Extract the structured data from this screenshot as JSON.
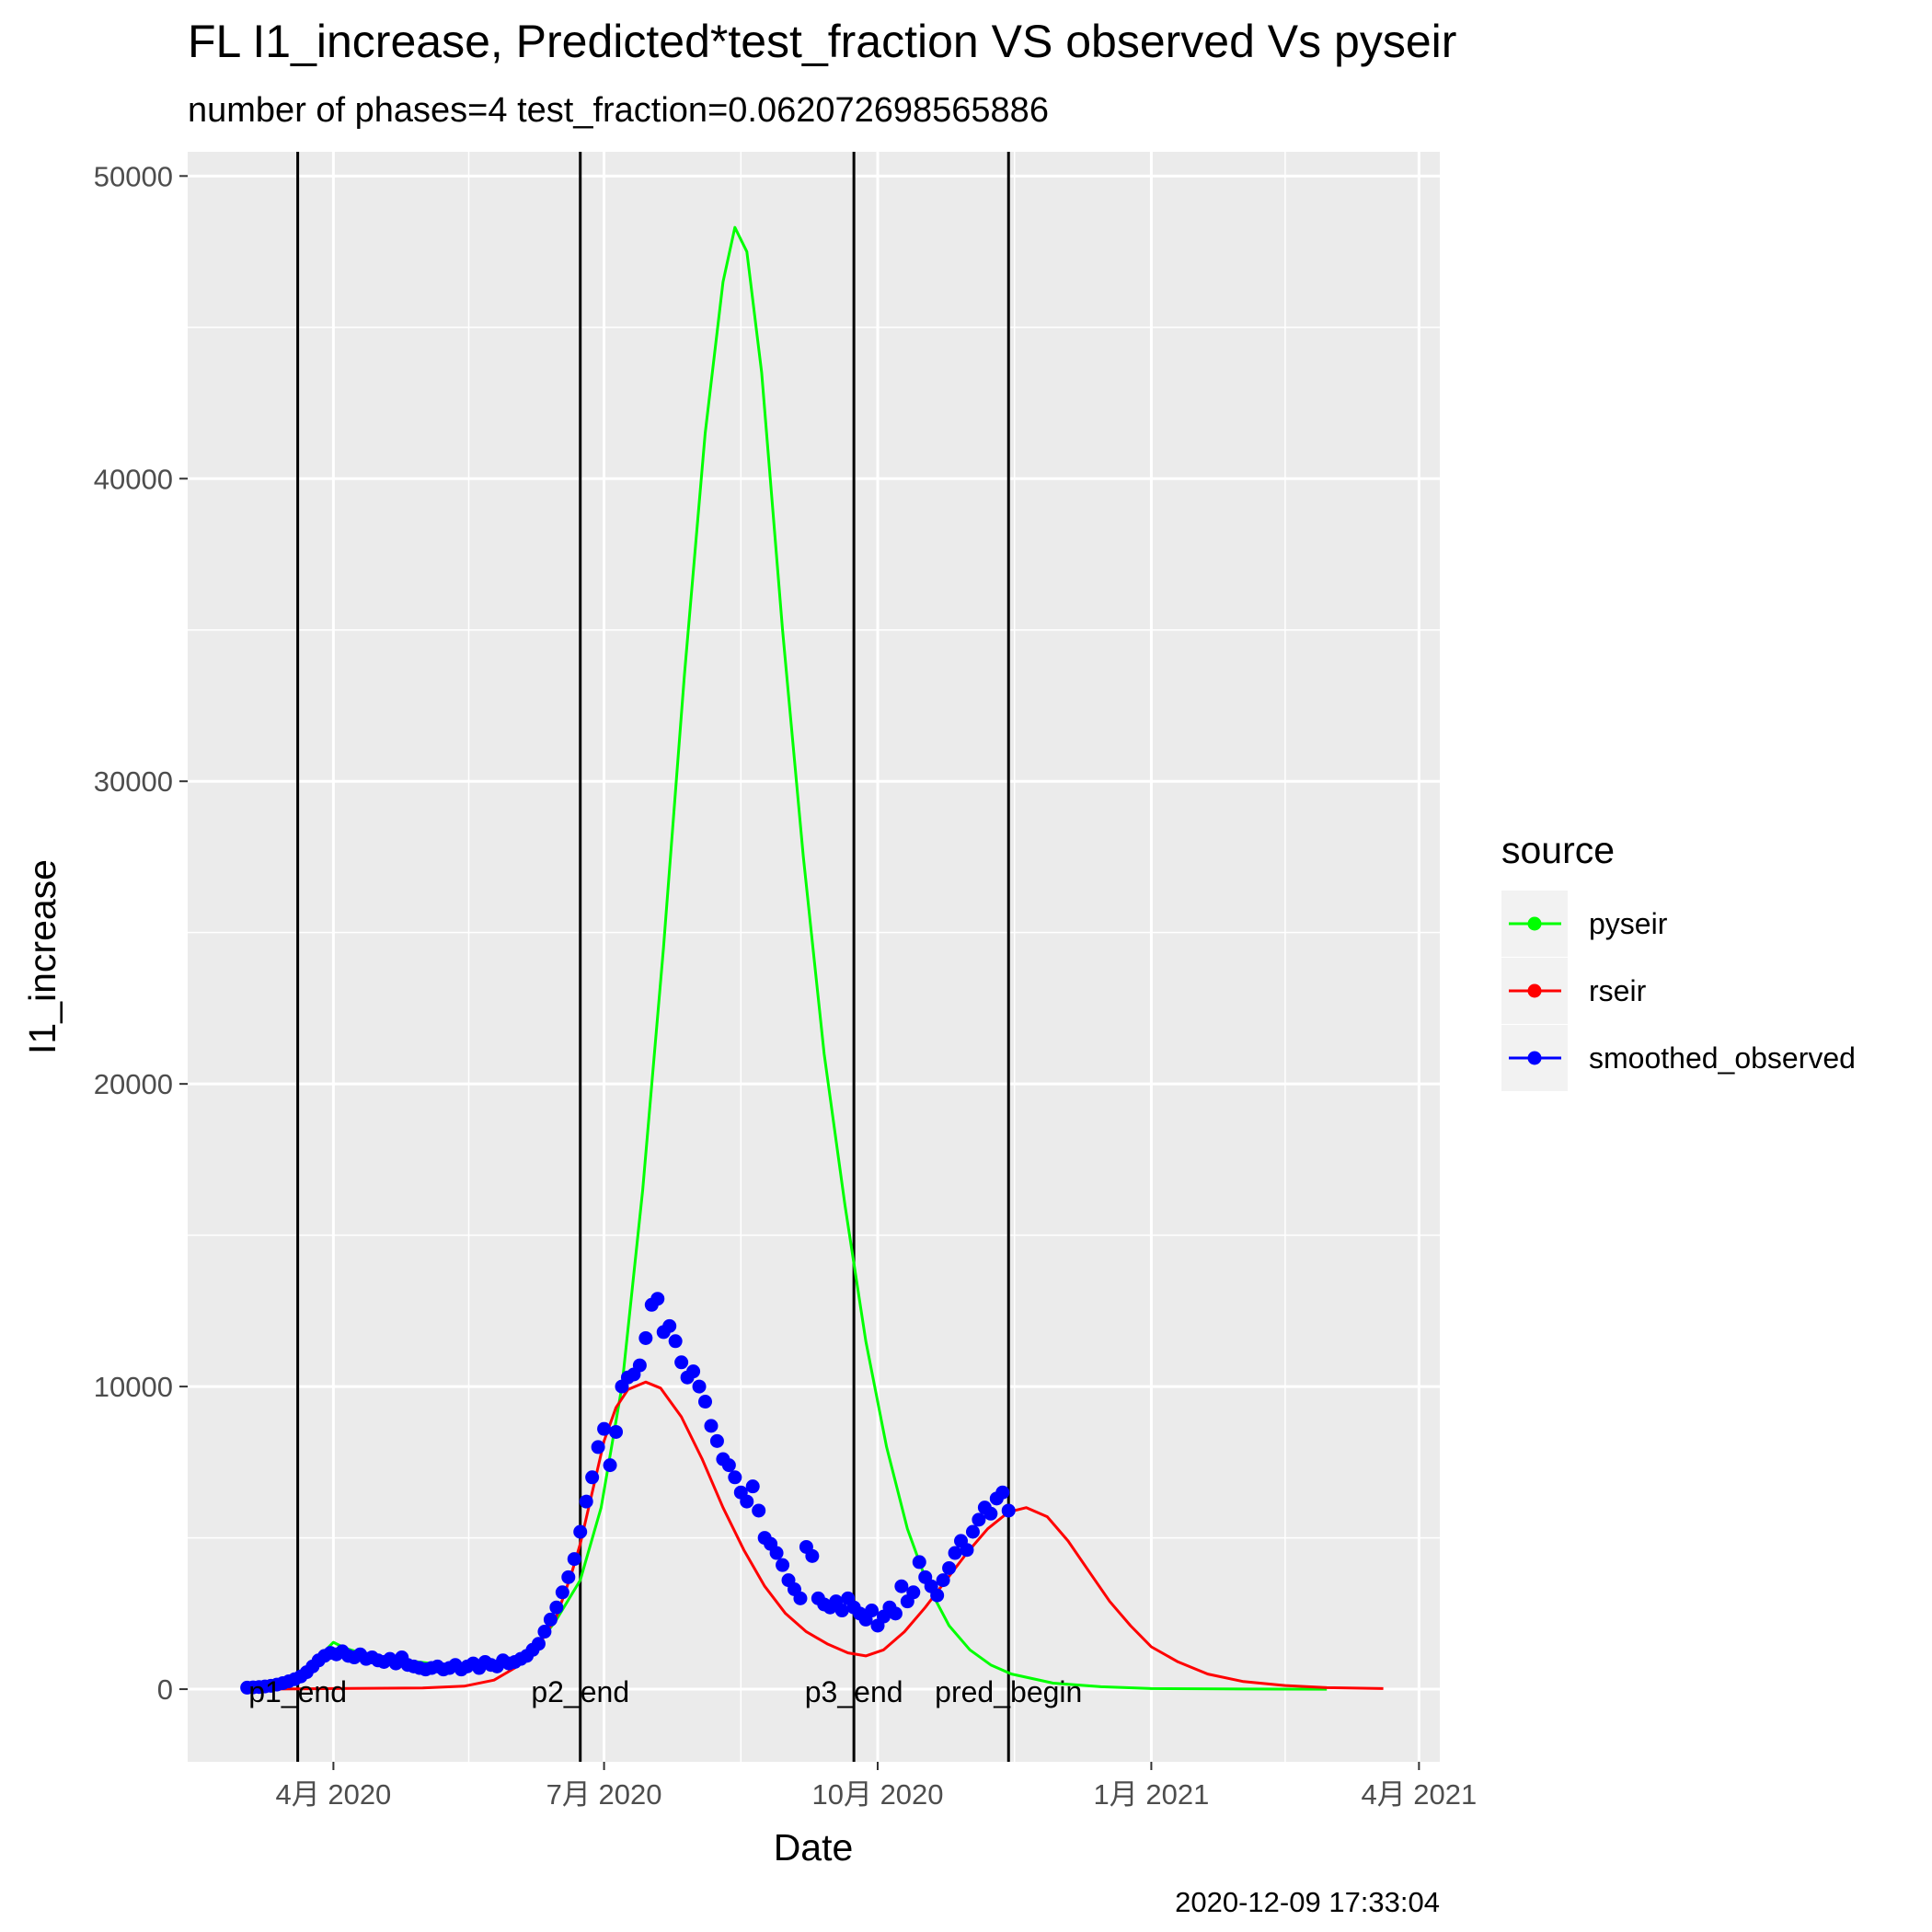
{
  "chart_data": {
    "type": "line",
    "title": "FL I1_increase, Predicted*test_fraction VS observed Vs pyseir",
    "subtitle": "number of phases=4   test_fraction=0.062072698565886",
    "xlabel": "Date",
    "ylabel": "I1_increase",
    "caption": "2020-12-09 17:33:04",
    "xlim": [
      "2020-02-12",
      "2021-04-08"
    ],
    "ylim": [
      -2400,
      50800
    ],
    "x_ticks": [
      {
        "value": "2020-04-01",
        "label": "4月 2020"
      },
      {
        "value": "2020-07-01",
        "label": "7月 2020"
      },
      {
        "value": "2020-10-01",
        "label": "10月 2020"
      },
      {
        "value": "2021-01-01",
        "label": "1月 2021"
      },
      {
        "value": "2021-04-01",
        "label": "4月 2021"
      }
    ],
    "y_ticks": [
      0,
      10000,
      20000,
      30000,
      40000,
      50000
    ],
    "grid": true,
    "legend": {
      "title": "source",
      "position": "right",
      "entries": [
        {
          "name": "pyseir",
          "color": "#00ff00"
        },
        {
          "name": "rseir",
          "color": "#ff0000"
        },
        {
          "name": "smoothed_observed",
          "color": "#0000ff"
        }
      ]
    },
    "vlines": [
      {
        "x": "2020-03-20",
        "label": "p1_end"
      },
      {
        "x": "2020-06-23",
        "label": "p2_end"
      },
      {
        "x": "2020-09-23",
        "label": "p3_end"
      },
      {
        "x": "2020-11-14",
        "label": "pred_begin"
      }
    ],
    "series": [
      {
        "name": "pyseir",
        "color": "#00ff00",
        "type": "line",
        "points": [
          [
            "2020-03-01",
            0
          ],
          [
            "2020-03-15",
            100
          ],
          [
            "2020-03-20",
            250
          ],
          [
            "2020-03-25",
            700
          ],
          [
            "2020-03-29",
            1250
          ],
          [
            "2020-04-01",
            1550
          ],
          [
            "2020-04-05",
            1350
          ],
          [
            "2020-04-12",
            1150
          ],
          [
            "2020-04-25",
            950
          ],
          [
            "2020-05-10",
            780
          ],
          [
            "2020-05-25",
            680
          ],
          [
            "2020-06-01",
            800
          ],
          [
            "2020-06-08",
            1350
          ],
          [
            "2020-06-15",
            2300
          ],
          [
            "2020-06-23",
            3600
          ],
          [
            "2020-06-30",
            6000
          ],
          [
            "2020-07-07",
            10000
          ],
          [
            "2020-07-14",
            16500
          ],
          [
            "2020-07-21",
            24500
          ],
          [
            "2020-07-28",
            33500
          ],
          [
            "2020-08-04",
            41500
          ],
          [
            "2020-08-10",
            46500
          ],
          [
            "2020-08-14",
            48300
          ],
          [
            "2020-08-18",
            47500
          ],
          [
            "2020-08-23",
            43500
          ],
          [
            "2020-08-30",
            35000
          ],
          [
            "2020-09-06",
            27500
          ],
          [
            "2020-09-13",
            21000
          ],
          [
            "2020-09-20",
            16000
          ],
          [
            "2020-09-27",
            11500
          ],
          [
            "2020-10-04",
            8000
          ],
          [
            "2020-10-11",
            5300
          ],
          [
            "2020-10-18",
            3400
          ],
          [
            "2020-10-25",
            2100
          ],
          [
            "2020-11-01",
            1300
          ],
          [
            "2020-11-08",
            800
          ],
          [
            "2020-11-15",
            500
          ],
          [
            "2020-11-29",
            200
          ],
          [
            "2020-12-15",
            80
          ],
          [
            "2021-01-01",
            20
          ],
          [
            "2021-02-01",
            5
          ],
          [
            "2021-03-01",
            0
          ]
        ]
      },
      {
        "name": "rseir",
        "color": "#ff0000",
        "type": "line",
        "points": [
          [
            "2020-03-01",
            0
          ],
          [
            "2020-03-20",
            10
          ],
          [
            "2020-04-01",
            20
          ],
          [
            "2020-05-01",
            40
          ],
          [
            "2020-05-15",
            100
          ],
          [
            "2020-05-25",
            300
          ],
          [
            "2020-06-01",
            700
          ],
          [
            "2020-06-08",
            1300
          ],
          [
            "2020-06-15",
            2400
          ],
          [
            "2020-06-20",
            3800
          ],
          [
            "2020-06-23",
            4800
          ],
          [
            "2020-06-27",
            6500
          ],
          [
            "2020-07-01",
            8200
          ],
          [
            "2020-07-05",
            9300
          ],
          [
            "2020-07-09",
            9900
          ],
          [
            "2020-07-15",
            10150
          ],
          [
            "2020-07-20",
            9950
          ],
          [
            "2020-07-27",
            9000
          ],
          [
            "2020-08-03",
            7600
          ],
          [
            "2020-08-10",
            6000
          ],
          [
            "2020-08-17",
            4600
          ],
          [
            "2020-08-24",
            3400
          ],
          [
            "2020-08-31",
            2500
          ],
          [
            "2020-09-07",
            1900
          ],
          [
            "2020-09-14",
            1500
          ],
          [
            "2020-09-21",
            1200
          ],
          [
            "2020-09-27",
            1100
          ],
          [
            "2020-10-03",
            1300
          ],
          [
            "2020-10-10",
            1900
          ],
          [
            "2020-10-17",
            2700
          ],
          [
            "2020-10-24",
            3600
          ],
          [
            "2020-10-31",
            4500
          ],
          [
            "2020-11-07",
            5300
          ],
          [
            "2020-11-14",
            5850
          ],
          [
            "2020-11-20",
            6000
          ],
          [
            "2020-11-27",
            5700
          ],
          [
            "2020-12-04",
            4900
          ],
          [
            "2020-12-11",
            3900
          ],
          [
            "2020-12-18",
            2900
          ],
          [
            "2020-12-25",
            2100
          ],
          [
            "2021-01-01",
            1400
          ],
          [
            "2021-01-10",
            900
          ],
          [
            "2021-01-20",
            500
          ],
          [
            "2021-02-01",
            250
          ],
          [
            "2021-02-15",
            120
          ],
          [
            "2021-03-01",
            50
          ],
          [
            "2021-03-20",
            20
          ]
        ]
      },
      {
        "name": "smoothed_observed",
        "color": "#0000ff",
        "type": "scatter",
        "points": [
          [
            "2020-03-03",
            50
          ],
          [
            "2020-03-05",
            60
          ],
          [
            "2020-03-07",
            70
          ],
          [
            "2020-03-09",
            90
          ],
          [
            "2020-03-11",
            110
          ],
          [
            "2020-03-13",
            150
          ],
          [
            "2020-03-15",
            200
          ],
          [
            "2020-03-17",
            260
          ],
          [
            "2020-03-19",
            330
          ],
          [
            "2020-03-21",
            420
          ],
          [
            "2020-03-23",
            560
          ],
          [
            "2020-03-25",
            750
          ],
          [
            "2020-03-27",
            950
          ],
          [
            "2020-03-29",
            1100
          ],
          [
            "2020-03-31",
            1200
          ],
          [
            "2020-04-02",
            1150
          ],
          [
            "2020-04-04",
            1250
          ],
          [
            "2020-04-06",
            1100
          ],
          [
            "2020-04-08",
            1050
          ],
          [
            "2020-04-10",
            1150
          ],
          [
            "2020-04-12",
            1000
          ],
          [
            "2020-04-14",
            1050
          ],
          [
            "2020-04-16",
            950
          ],
          [
            "2020-04-18",
            900
          ],
          [
            "2020-04-20",
            1000
          ],
          [
            "2020-04-22",
            850
          ],
          [
            "2020-04-24",
            1050
          ],
          [
            "2020-04-26",
            800
          ],
          [
            "2020-04-28",
            750
          ],
          [
            "2020-04-30",
            700
          ],
          [
            "2020-05-02",
            650
          ],
          [
            "2020-05-04",
            700
          ],
          [
            "2020-05-06",
            750
          ],
          [
            "2020-05-08",
            650
          ],
          [
            "2020-05-10",
            700
          ],
          [
            "2020-05-12",
            800
          ],
          [
            "2020-05-14",
            650
          ],
          [
            "2020-05-16",
            750
          ],
          [
            "2020-05-18",
            850
          ],
          [
            "2020-05-20",
            700
          ],
          [
            "2020-05-22",
            900
          ],
          [
            "2020-05-24",
            800
          ],
          [
            "2020-05-26",
            750
          ],
          [
            "2020-05-28",
            950
          ],
          [
            "2020-05-30",
            850
          ],
          [
            "2020-06-01",
            900
          ],
          [
            "2020-06-03",
            1000
          ],
          [
            "2020-06-05",
            1100
          ],
          [
            "2020-06-07",
            1300
          ],
          [
            "2020-06-09",
            1500
          ],
          [
            "2020-06-11",
            1900
          ],
          [
            "2020-06-13",
            2300
          ],
          [
            "2020-06-15",
            2700
          ],
          [
            "2020-06-17",
            3200
          ],
          [
            "2020-06-19",
            3700
          ],
          [
            "2020-06-21",
            4300
          ],
          [
            "2020-06-23",
            5200
          ],
          [
            "2020-06-25",
            6200
          ],
          [
            "2020-06-27",
            7000
          ],
          [
            "2020-06-29",
            8000
          ],
          [
            "2020-07-01",
            8600
          ],
          [
            "2020-07-03",
            7400
          ],
          [
            "2020-07-05",
            8500
          ],
          [
            "2020-07-07",
            10000
          ],
          [
            "2020-07-09",
            10300
          ],
          [
            "2020-07-11",
            10400
          ],
          [
            "2020-07-13",
            10700
          ],
          [
            "2020-07-15",
            11600
          ],
          [
            "2020-07-17",
            12700
          ],
          [
            "2020-07-19",
            12900
          ],
          [
            "2020-07-21",
            11800
          ],
          [
            "2020-07-23",
            12000
          ],
          [
            "2020-07-25",
            11500
          ],
          [
            "2020-07-27",
            10800
          ],
          [
            "2020-07-29",
            10300
          ],
          [
            "2020-07-31",
            10500
          ],
          [
            "2020-08-02",
            10000
          ],
          [
            "2020-08-04",
            9500
          ],
          [
            "2020-08-06",
            8700
          ],
          [
            "2020-08-08",
            8200
          ],
          [
            "2020-08-10",
            7600
          ],
          [
            "2020-08-12",
            7400
          ],
          [
            "2020-08-14",
            7000
          ],
          [
            "2020-08-16",
            6500
          ],
          [
            "2020-08-18",
            6200
          ],
          [
            "2020-08-20",
            6700
          ],
          [
            "2020-08-22",
            5900
          ],
          [
            "2020-08-24",
            5000
          ],
          [
            "2020-08-26",
            4800
          ],
          [
            "2020-08-28",
            4500
          ],
          [
            "2020-08-30",
            4100
          ],
          [
            "2020-09-01",
            3600
          ],
          [
            "2020-09-03",
            3300
          ],
          [
            "2020-09-05",
            3000
          ],
          [
            "2020-09-07",
            4700
          ],
          [
            "2020-09-09",
            4400
          ],
          [
            "2020-09-11",
            3000
          ],
          [
            "2020-09-13",
            2800
          ],
          [
            "2020-09-15",
            2700
          ],
          [
            "2020-09-17",
            2900
          ],
          [
            "2020-09-19",
            2600
          ],
          [
            "2020-09-21",
            3000
          ],
          [
            "2020-09-23",
            2700
          ],
          [
            "2020-09-25",
            2500
          ],
          [
            "2020-09-27",
            2300
          ],
          [
            "2020-09-29",
            2600
          ],
          [
            "2020-10-01",
            2100
          ],
          [
            "2020-10-03",
            2400
          ],
          [
            "2020-10-05",
            2700
          ],
          [
            "2020-10-07",
            2500
          ],
          [
            "2020-10-09",
            3400
          ],
          [
            "2020-10-11",
            2900
          ],
          [
            "2020-10-13",
            3200
          ],
          [
            "2020-10-15",
            4200
          ],
          [
            "2020-10-17",
            3700
          ],
          [
            "2020-10-19",
            3400
          ],
          [
            "2020-10-21",
            3100
          ],
          [
            "2020-10-23",
            3600
          ],
          [
            "2020-10-25",
            4000
          ],
          [
            "2020-10-27",
            4500
          ],
          [
            "2020-10-29",
            4900
          ],
          [
            "2020-10-31",
            4600
          ],
          [
            "2020-11-02",
            5200
          ],
          [
            "2020-11-04",
            5600
          ],
          [
            "2020-11-06",
            6000
          ],
          [
            "2020-11-08",
            5800
          ],
          [
            "2020-11-10",
            6300
          ],
          [
            "2020-11-12",
            6500
          ],
          [
            "2020-11-14",
            5900
          ]
        ]
      }
    ]
  }
}
